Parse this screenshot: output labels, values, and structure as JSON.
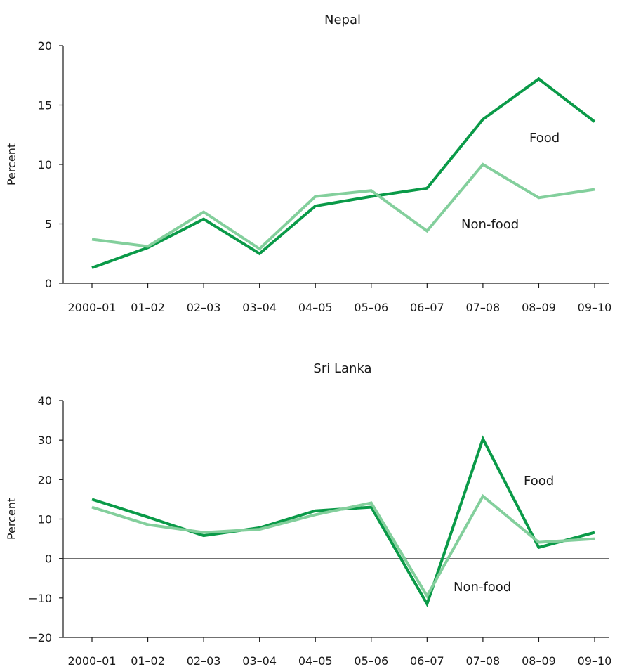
{
  "chart_data": [
    {
      "type": "line",
      "title": "Nepal",
      "ylabel": "Percent",
      "xlabel": "",
      "ylim": [
        0,
        20
      ],
      "yticks": [
        0,
        5,
        10,
        15,
        20
      ],
      "categories": [
        "2000–01",
        "01–02",
        "02–03",
        "03–04",
        "04–05",
        "05–06",
        "06–07",
        "07–08",
        "08–09",
        "09–10"
      ],
      "series": [
        {
          "name": "Food",
          "color": "#0a9a48",
          "values": [
            1.3,
            3.0,
            5.4,
            2.5,
            6.5,
            7.3,
            8.0,
            13.8,
            17.2,
            13.6
          ]
        },
        {
          "name": "Non-food",
          "color": "#83cf9c",
          "values": [
            3.7,
            3.1,
            6.0,
            2.9,
            7.3,
            7.8,
            4.4,
            10.0,
            7.2,
            7.9
          ]
        }
      ],
      "annotations": [
        {
          "text": "Food",
          "series": "Food"
        },
        {
          "text": "Non-food",
          "series": "Non-food"
        }
      ]
    },
    {
      "type": "line",
      "title": "Sri Lanka",
      "ylabel": "Percent",
      "xlabel": "",
      "ylim": [
        -20,
        40
      ],
      "yticks": [
        -20,
        -10,
        0,
        10,
        20,
        30,
        40
      ],
      "categories": [
        "2000–01",
        "01–02",
        "02–03",
        "03–04",
        "04–05",
        "05–06",
        "06–07",
        "07–08",
        "08–09",
        "09–10"
      ],
      "series": [
        {
          "name": "Food",
          "color": "#0a9a48",
          "values": [
            15.0,
            10.5,
            5.8,
            7.8,
            12.1,
            13.0,
            -11.5,
            30.3,
            2.8,
            6.6
          ]
        },
        {
          "name": "Non-food",
          "color": "#83cf9c",
          "values": [
            13.0,
            8.6,
            6.6,
            7.4,
            11.1,
            14.1,
            -9.5,
            15.8,
            4.1,
            5.0
          ]
        }
      ],
      "annotations": [
        {
          "text": "Food",
          "series": "Food"
        },
        {
          "text": "Non-food",
          "series": "Non-food"
        }
      ]
    }
  ]
}
